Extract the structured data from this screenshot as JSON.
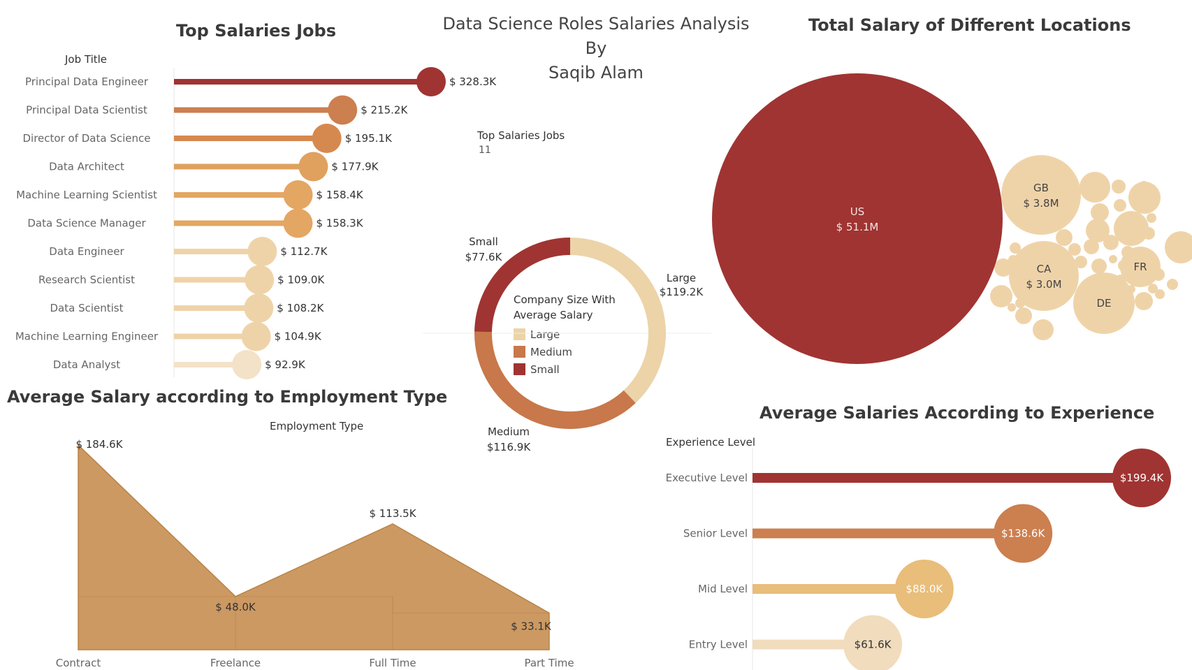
{
  "dashboard": {
    "title_line1": "Data Science Roles Salaries Analysis",
    "title_line2": "By",
    "title_line3": "Saqib Alam"
  },
  "kpi": {
    "label": "Top Salaries Jobs",
    "value": "11"
  },
  "palette": {
    "dark_red": "#a03432",
    "orange": "#cc7f4f",
    "gold": "#e0a15e",
    "light_gold": "#e9bd7a",
    "cream": "#efd3a8",
    "pale": "#f3e2c7",
    "area": "#cc9962"
  },
  "chart_data": [
    {
      "id": "top_jobs",
      "type": "bar",
      "title": "Top Salaries Jobs",
      "ylabel": "Job Title",
      "categories": [
        "Principal Data Engineer",
        "Principal Data Scientist",
        "Director of Data Science",
        "Data Architect",
        "Machine Learning Scientist",
        "Data Science Manager",
        "Data Engineer",
        "Research Scientist",
        "Data Scientist",
        "Machine Learning Engineer",
        "Data Analyst"
      ],
      "values": [
        328.3,
        215.2,
        195.1,
        177.9,
        158.4,
        158.3,
        112.7,
        109.0,
        108.2,
        104.9,
        92.9
      ],
      "labels": [
        "$ 328.3K",
        "$ 215.2K",
        "$ 195.1K",
        "$ 177.9K",
        "$ 158.4K",
        "$ 158.3K",
        "$ 112.7K",
        "$ 109.0K",
        "$ 108.2K",
        "$ 104.9K",
        "$ 92.9K"
      ],
      "colors": [
        "#a03432",
        "#cc7f4f",
        "#d6894f",
        "#e0a15e",
        "#e4a663",
        "#e4a663",
        "#efd3a8",
        "#efd3a8",
        "#efd3a8",
        "#efd3a8",
        "#f3e2c7"
      ],
      "xlim": [
        0,
        360
      ]
    },
    {
      "id": "company_size",
      "type": "pie",
      "title": "Company Size With Average Salary",
      "categories": [
        "Large",
        "Medium",
        "Small"
      ],
      "values": [
        119.2,
        116.9,
        77.6
      ],
      "labels": [
        "$119.2K",
        "$116.9K",
        "$77.6K"
      ],
      "colors": [
        "#ecd3a8",
        "#c8784a",
        "#a03432"
      ]
    },
    {
      "id": "locations",
      "type": "scatter",
      "title": "Total Salary of Different Locations",
      "bubbles": [
        {
          "name": "US",
          "label": "$ 51.1M",
          "value": 51.1
        },
        {
          "name": "GB",
          "label": "$ 3.8M",
          "value": 3.8
        },
        {
          "name": "CA",
          "label": "$ 3.0M",
          "value": 3.0
        },
        {
          "name": "DE",
          "label": "",
          "value": 2.2
        },
        {
          "name": "FR",
          "label": "",
          "value": 1.8
        }
      ],
      "colors": [
        "#a03432",
        "#efd3a8"
      ]
    },
    {
      "id": "employment",
      "type": "area",
      "title": "Average Salary according to Employment Type",
      "xlabel": "Employment Type",
      "categories": [
        "Contract",
        "Freelance",
        "Full Time",
        "Part Time"
      ],
      "values": [
        184.6,
        48.0,
        113.5,
        33.1
      ],
      "labels": [
        "$ 184.6K",
        "$ 48.0K",
        "$ 113.5K",
        "$ 33.1K"
      ],
      "ylim": [
        0,
        184.6
      ],
      "color": "#cc9962"
    },
    {
      "id": "experience",
      "type": "bar",
      "title": "Average Salaries According to Experience",
      "ylabel": "Experience Level",
      "categories": [
        "Executive Level",
        "Senior Level",
        "Mid Level",
        "Entry Level"
      ],
      "values": [
        199.4,
        138.6,
        88.0,
        61.6
      ],
      "labels": [
        "$199.4K",
        "$138.6K",
        "$88.0K",
        "$61.6K"
      ],
      "colors": [
        "#a03432",
        "#cc7f4f",
        "#e9bd7a",
        "#f1dcbd"
      ],
      "xlim": [
        0,
        220
      ]
    }
  ]
}
